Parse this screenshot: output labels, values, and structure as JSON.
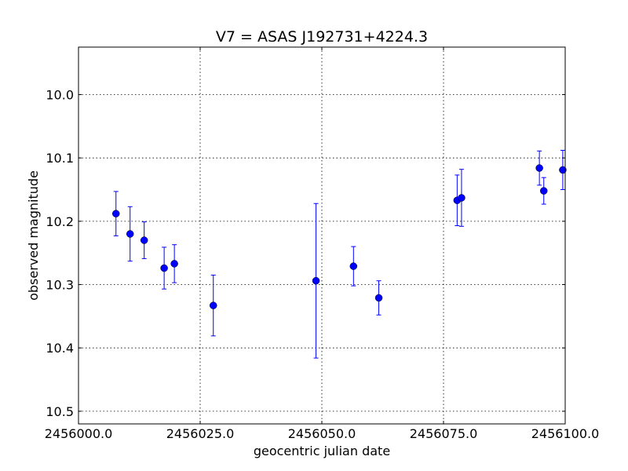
{
  "chart_data": {
    "type": "scatter",
    "title": "V7 = ASAS J192731+4224.3",
    "xlabel": "geocentric julian date",
    "ylabel": "observed magnitude",
    "xlim": [
      2456000.0,
      2456100.0
    ],
    "ylim": [
      10.52,
      9.925
    ],
    "y_inverted": true,
    "grid": true,
    "xticks": [
      2456000.0,
      2456025.0,
      2456050.0,
      2456075.0,
      2456100.0
    ],
    "xtick_labels": [
      "2456000.0",
      "2456025.0",
      "2456050.0",
      "2456075.0",
      "2456100.0"
    ],
    "yticks": [
      10.0,
      10.1,
      10.2,
      10.3,
      10.4,
      10.5
    ],
    "ytick_labels": [
      "10.0",
      "10.1",
      "10.2",
      "10.3",
      "10.4",
      "10.5"
    ],
    "marker_color": "#0000ff",
    "points": [
      {
        "x": 2456007.7,
        "y": 10.188,
        "err": 0.035
      },
      {
        "x": 2456010.6,
        "y": 10.22,
        "err": 0.043
      },
      {
        "x": 2456013.5,
        "y": 10.23,
        "err": 0.029
      },
      {
        "x": 2456017.6,
        "y": 10.274,
        "err": 0.033
      },
      {
        "x": 2456019.7,
        "y": 10.267,
        "err": 0.03
      },
      {
        "x": 2456027.7,
        "y": 10.333,
        "err": 0.048
      },
      {
        "x": 2456048.8,
        "y": 10.294,
        "err": 0.122
      },
      {
        "x": 2456056.5,
        "y": 10.271,
        "err": 0.031
      },
      {
        "x": 2456061.7,
        "y": 10.321,
        "err": 0.027
      },
      {
        "x": 2456077.8,
        "y": 10.167,
        "err": 0.04
      },
      {
        "x": 2456078.7,
        "y": 10.163,
        "err": 0.045
      },
      {
        "x": 2456094.7,
        "y": 10.116,
        "err": 0.027
      },
      {
        "x": 2456095.6,
        "y": 10.152,
        "err": 0.021
      },
      {
        "x": 2456099.5,
        "y": 10.119,
        "err": 0.031
      }
    ]
  }
}
